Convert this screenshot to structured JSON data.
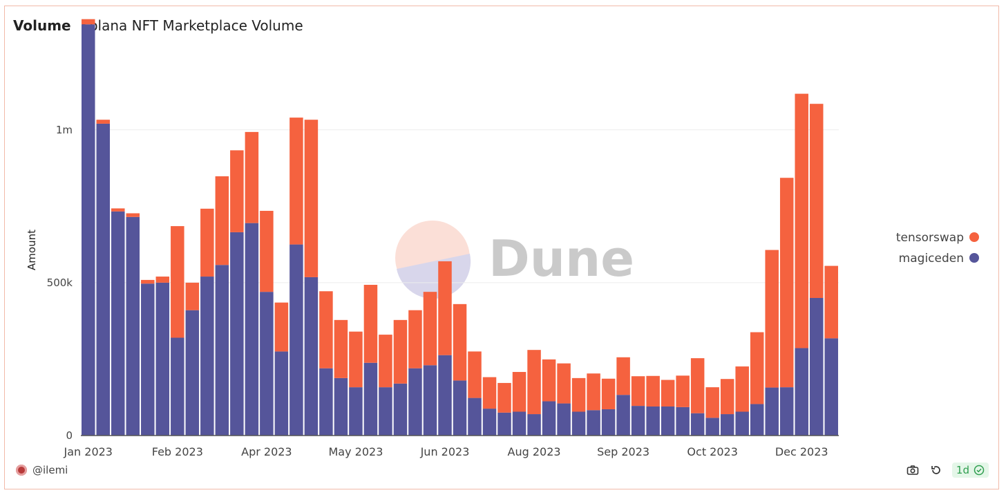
{
  "header": {
    "name": "Volume",
    "title": "Solana NFT Marketplace Volume"
  },
  "owner": {
    "handle": "@ilemi"
  },
  "refresh": {
    "label": "1d"
  },
  "icons": {
    "camera": "camera-icon",
    "refresh": "refresh-icon",
    "check": "check-circle-icon",
    "avatar": "avatar"
  },
  "watermark": "Dune",
  "colors": {
    "tensorswap": "#f5623f",
    "magiceden": "#55559a"
  },
  "chart_data": {
    "type": "bar",
    "stacked": true,
    "ylabel": "Amount",
    "ylim": [
      0,
      1350000
    ],
    "y_ticks": [
      {
        "value": 0,
        "label": "0"
      },
      {
        "value": 500000,
        "label": "500k"
      },
      {
        "value": 1000000,
        "label": "1m"
      }
    ],
    "x_ticks": [
      {
        "index": 0,
        "label": "Jan 2023"
      },
      {
        "index": 6,
        "label": "Feb 2023"
      },
      {
        "index": 12,
        "label": "Apr 2023"
      },
      {
        "index": 18,
        "label": "May 2023"
      },
      {
        "index": 24,
        "label": "Jun 2023"
      },
      {
        "index": 30,
        "label": "Aug 2023"
      },
      {
        "index": 36,
        "label": "Sep 2023"
      },
      {
        "index": 42,
        "label": "Oct 2023"
      },
      {
        "index": 48,
        "label": "Dec 2023"
      }
    ],
    "legend_position": "right",
    "grid": true,
    "series": [
      {
        "name": "magiceden",
        "values": [
          1345000,
          1020000,
          733000,
          715000,
          497000,
          500000,
          320000,
          410000,
          520000,
          558000,
          665000,
          695000,
          470000,
          275000,
          625000,
          518000,
          220000,
          188000,
          158000,
          238000,
          158000,
          170000,
          220000,
          230000,
          263000,
          180000,
          123000,
          88000,
          75000,
          78000,
          70000,
          112000,
          105000,
          78000,
          83000,
          86000,
          133000,
          97000,
          95000,
          95000,
          93000,
          73000,
          58000,
          70000,
          78000,
          103000,
          157000,
          158000,
          286000,
          450000,
          318000
        ]
      },
      {
        "name": "tensorswap",
        "values": [
          17000,
          13000,
          10000,
          12000,
          12000,
          20000,
          365000,
          90000,
          222000,
          290000,
          268000,
          298000,
          265000,
          160000,
          415000,
          515000,
          252000,
          190000,
          182000,
          255000,
          172000,
          208000,
          190000,
          240000,
          307000,
          250000,
          152000,
          103000,
          97000,
          130000,
          210000,
          137000,
          131000,
          110000,
          120000,
          100000,
          123000,
          97000,
          100000,
          87000,
          103000,
          180000,
          100000,
          115000,
          148000,
          235000,
          450000,
          685000,
          832000,
          635000,
          237000
        ]
      }
    ]
  }
}
